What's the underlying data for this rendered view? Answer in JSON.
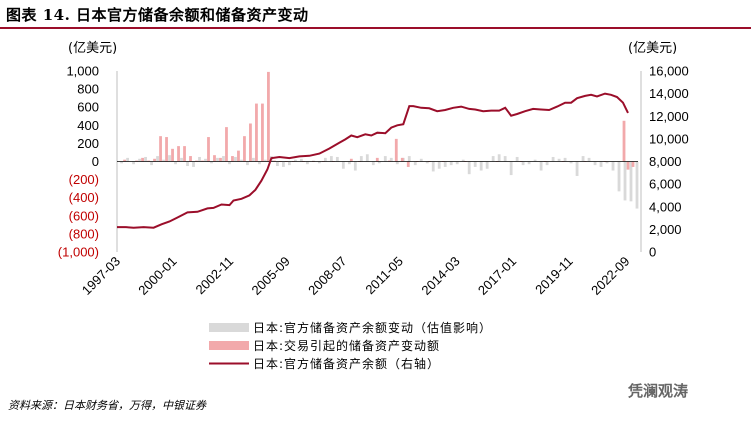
{
  "header": {
    "title": "图表 14.  日本官方储备余额和储备资产变动"
  },
  "footer": {
    "source": "资料来源：日本财务省，万得，中银证券",
    "watermark": "凭澜观涛"
  },
  "colors": {
    "title_rule": "#9b0e2a",
    "valuation_bar": "#d9d9d9",
    "transaction_bar": "#f2a9ab",
    "balance_line": "#9b0e2a",
    "negative_tick": "#c00000"
  },
  "chart_data": {
    "type": "bar+line",
    "left_axis": {
      "unit": "(亿美元)",
      "ylim": [
        -1000,
        1000
      ],
      "ticks": [
        1000,
        800,
        600,
        400,
        200,
        0,
        -200,
        -400,
        -600,
        -800,
        -1000
      ],
      "tick_labels": [
        "1,000",
        "800",
        "600",
        "400",
        "200",
        "0",
        "(200)",
        "(400)",
        "(600)",
        "(800)",
        "(1,000)"
      ]
    },
    "right_axis": {
      "unit": "(亿美元)",
      "ylim": [
        0,
        16000
      ],
      "ticks": [
        16000,
        14000,
        12000,
        10000,
        8000,
        6000,
        4000,
        2000,
        0
      ],
      "tick_labels": [
        "16,000",
        "14,000",
        "12,000",
        "10,000",
        "8,000",
        "6,000",
        "4,000",
        "2,000",
        "0"
      ]
    },
    "x_axis": {
      "start": "1997-03",
      "end": "2022-12",
      "tick_labels": [
        "1997-03",
        "2000-01",
        "2002-11",
        "2005-09",
        "2008-07",
        "2011-05",
        "2014-03",
        "2017-01",
        "2019-11",
        "2022-09"
      ],
      "tick_positions": [
        1997.17,
        2000.0,
        2002.83,
        2005.67,
        2008.5,
        2011.33,
        2014.17,
        2017.0,
        2019.83,
        2022.67
      ]
    },
    "series": [
      {
        "name": "日本:官方储备资产余额变动（估值影响）",
        "type": "bar",
        "axis": "left",
        "points": [
          [
            1997.4,
            -20
          ],
          [
            1997.7,
            40
          ],
          [
            1998.0,
            -30
          ],
          [
            1998.3,
            30
          ],
          [
            1998.6,
            50
          ],
          [
            1998.9,
            -40
          ],
          [
            1999.2,
            60
          ],
          [
            1999.5,
            20
          ],
          [
            1999.8,
            70
          ],
          [
            2000.1,
            -30
          ],
          [
            2000.4,
            40
          ],
          [
            2000.7,
            -50
          ],
          [
            2001.0,
            -60
          ],
          [
            2001.3,
            50
          ],
          [
            2001.6,
            30
          ],
          [
            2001.9,
            -20
          ],
          [
            2002.2,
            40
          ],
          [
            2002.5,
            60
          ],
          [
            2002.8,
            -30
          ],
          [
            2003.1,
            50
          ],
          [
            2003.4,
            20
          ],
          [
            2003.7,
            -40
          ],
          [
            2004.0,
            40
          ],
          [
            2004.3,
            -30
          ],
          [
            2004.6,
            20
          ],
          [
            2004.9,
            60
          ],
          [
            2005.2,
            -50
          ],
          [
            2005.5,
            -60
          ],
          [
            2005.8,
            -40
          ],
          [
            2006.1,
            20
          ],
          [
            2006.4,
            30
          ],
          [
            2006.7,
            -30
          ],
          [
            2007.0,
            10
          ],
          [
            2007.3,
            -20
          ],
          [
            2007.6,
            40
          ],
          [
            2007.9,
            60
          ],
          [
            2008.2,
            50
          ],
          [
            2008.5,
            -80
          ],
          [
            2008.8,
            -30
          ],
          [
            2009.1,
            -100
          ],
          [
            2009.4,
            60
          ],
          [
            2009.7,
            80
          ],
          [
            2010.0,
            -40
          ],
          [
            2010.3,
            -20
          ],
          [
            2010.6,
            60
          ],
          [
            2010.9,
            40
          ],
          [
            2011.2,
            -30
          ],
          [
            2011.5,
            40
          ],
          [
            2011.8,
            60
          ],
          [
            2012.1,
            -40
          ],
          [
            2012.4,
            30
          ],
          [
            2012.7,
            -20
          ],
          [
            2013.0,
            -110
          ],
          [
            2013.3,
            -80
          ],
          [
            2013.6,
            -60
          ],
          [
            2013.9,
            -40
          ],
          [
            2014.2,
            -30
          ],
          [
            2014.5,
            20
          ],
          [
            2014.8,
            -140
          ],
          [
            2015.1,
            -60
          ],
          [
            2015.4,
            -100
          ],
          [
            2015.7,
            -80
          ],
          [
            2016.0,
            60
          ],
          [
            2016.3,
            80
          ],
          [
            2016.6,
            60
          ],
          [
            2016.9,
            -150
          ],
          [
            2017.2,
            50
          ],
          [
            2017.5,
            -40
          ],
          [
            2017.8,
            -30
          ],
          [
            2018.1,
            20
          ],
          [
            2018.4,
            -100
          ],
          [
            2018.7,
            -40
          ],
          [
            2019.0,
            50
          ],
          [
            2019.3,
            30
          ],
          [
            2019.6,
            40
          ],
          [
            2019.9,
            -20
          ],
          [
            2020.2,
            -160
          ],
          [
            2020.5,
            60
          ],
          [
            2020.8,
            40
          ],
          [
            2021.1,
            -40
          ],
          [
            2021.4,
            -60
          ],
          [
            2021.7,
            -20
          ],
          [
            2022.0,
            -100
          ],
          [
            2022.3,
            -330
          ],
          [
            2022.6,
            -430
          ],
          [
            2022.9,
            -440
          ],
          [
            2023.2,
            -520
          ]
        ]
      },
      {
        "name": "日本:交易引起的储备资产变动额",
        "type": "bar",
        "axis": "left",
        "points": [
          [
            1997.55,
            20
          ],
          [
            1998.15,
            10
          ],
          [
            1998.45,
            40
          ],
          [
            1998.75,
            10
          ],
          [
            1999.05,
            30
          ],
          [
            1999.35,
            280
          ],
          [
            1999.65,
            270
          ],
          [
            1999.95,
            140
          ],
          [
            2000.25,
            170
          ],
          [
            2000.55,
            170
          ],
          [
            2000.85,
            60
          ],
          [
            2001.15,
            10
          ],
          [
            2001.45,
            10
          ],
          [
            2001.75,
            270
          ],
          [
            2002.05,
            70
          ],
          [
            2002.35,
            40
          ],
          [
            2002.65,
            380
          ],
          [
            2002.95,
            60
          ],
          [
            2003.25,
            120
          ],
          [
            2003.55,
            280
          ],
          [
            2003.85,
            420
          ],
          [
            2004.15,
            640
          ],
          [
            2004.45,
            640
          ],
          [
            2004.75,
            990
          ],
          [
            2005.05,
            10
          ],
          [
            2005.35,
            5
          ],
          [
            2005.65,
            5
          ],
          [
            2006.0,
            5
          ],
          [
            2006.5,
            5
          ],
          [
            2007.0,
            5
          ],
          [
            2007.5,
            5
          ],
          [
            2008.0,
            5
          ],
          [
            2008.9,
            30
          ],
          [
            2009.3,
            5
          ],
          [
            2010.2,
            40
          ],
          [
            2010.8,
            10
          ],
          [
            2011.15,
            250
          ],
          [
            2011.45,
            40
          ],
          [
            2011.75,
            -60
          ],
          [
            2012.2,
            5
          ],
          [
            2012.8,
            5
          ],
          [
            2013.5,
            5
          ],
          [
            2014.6,
            5
          ],
          [
            2016.2,
            5
          ],
          [
            2017.4,
            5
          ],
          [
            2018.6,
            5
          ],
          [
            2019.5,
            5
          ],
          [
            2020.6,
            5
          ],
          [
            2021.6,
            5
          ],
          [
            2022.55,
            450
          ],
          [
            2022.75,
            -90
          ],
          [
            2023.0,
            -60
          ]
        ]
      },
      {
        "name": "日本:官方储备资产余额（右轴）",
        "type": "line",
        "axis": "right",
        "points": [
          [
            1997.17,
            2200
          ],
          [
            1997.6,
            2200
          ],
          [
            1998.0,
            2150
          ],
          [
            1998.5,
            2200
          ],
          [
            1999.0,
            2150
          ],
          [
            1999.4,
            2450
          ],
          [
            1999.8,
            2700
          ],
          [
            2000.2,
            3050
          ],
          [
            2000.7,
            3500
          ],
          [
            2001.2,
            3550
          ],
          [
            2001.7,
            3850
          ],
          [
            2002.0,
            3900
          ],
          [
            2002.4,
            4200
          ],
          [
            2002.8,
            4150
          ],
          [
            2003.0,
            4550
          ],
          [
            2003.4,
            4700
          ],
          [
            2003.8,
            5000
          ],
          [
            2004.1,
            5500
          ],
          [
            2004.4,
            6300
          ],
          [
            2004.7,
            7300
          ],
          [
            2004.9,
            8300
          ],
          [
            2005.3,
            8400
          ],
          [
            2005.8,
            8300
          ],
          [
            2006.3,
            8450
          ],
          [
            2006.8,
            8500
          ],
          [
            2007.3,
            8700
          ],
          [
            2007.8,
            9150
          ],
          [
            2008.3,
            9650
          ],
          [
            2008.6,
            9950
          ],
          [
            2008.9,
            10300
          ],
          [
            2009.2,
            10150
          ],
          [
            2009.6,
            10400
          ],
          [
            2009.9,
            10300
          ],
          [
            2010.2,
            10550
          ],
          [
            2010.6,
            10500
          ],
          [
            2010.9,
            11000
          ],
          [
            2011.2,
            11200
          ],
          [
            2011.5,
            11300
          ],
          [
            2011.8,
            12900
          ],
          [
            2012.0,
            12900
          ],
          [
            2012.4,
            12750
          ],
          [
            2012.8,
            12700
          ],
          [
            2013.2,
            12450
          ],
          [
            2013.6,
            12550
          ],
          [
            2014.0,
            12750
          ],
          [
            2014.4,
            12850
          ],
          [
            2014.8,
            12650
          ],
          [
            2015.1,
            12600
          ],
          [
            2015.5,
            12450
          ],
          [
            2015.9,
            12500
          ],
          [
            2016.3,
            12500
          ],
          [
            2016.6,
            12750
          ],
          [
            2016.9,
            12050
          ],
          [
            2017.2,
            12200
          ],
          [
            2017.6,
            12450
          ],
          [
            2018.0,
            12650
          ],
          [
            2018.4,
            12600
          ],
          [
            2018.8,
            12550
          ],
          [
            2019.2,
            12850
          ],
          [
            2019.6,
            13200
          ],
          [
            2019.9,
            13200
          ],
          [
            2020.2,
            13600
          ],
          [
            2020.6,
            13800
          ],
          [
            2020.9,
            13900
          ],
          [
            2021.2,
            13750
          ],
          [
            2021.6,
            14000
          ],
          [
            2021.9,
            13900
          ],
          [
            2022.2,
            13700
          ],
          [
            2022.5,
            13200
          ],
          [
            2022.75,
            12300
          ]
        ]
      }
    ]
  }
}
